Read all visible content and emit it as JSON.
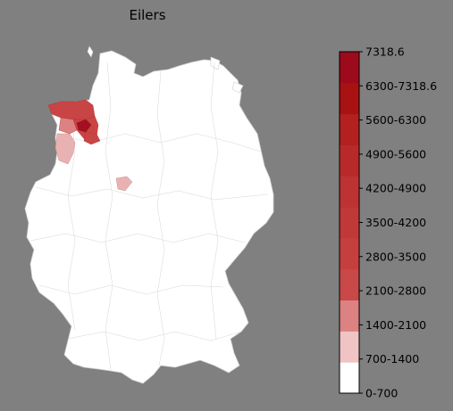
{
  "title": "Eilers",
  "legend": {
    "labels": [
      "0-700",
      "700-1400",
      "1400-2100",
      "2100-2800",
      "2800-3500",
      "3500-4200",
      "4200-4900",
      "4900-5600",
      "5600-6300",
      "6300-7318.6",
      "7318.6"
    ],
    "colors": [
      "#ffffff",
      "#f0c4c4",
      "#dd8282",
      "#c94848",
      "#c53f3f",
      "#c13838",
      "#bd3232",
      "#b82a2a",
      "#b22020",
      "#a81212",
      "#9c0a1c"
    ]
  },
  "map_colors": {
    "land": "#ffffff",
    "border": "#cfcfcf",
    "highlight_dark": "#a50f22",
    "highlight_mid": "#c94545",
    "highlight_light": "#e9b2b2"
  }
}
